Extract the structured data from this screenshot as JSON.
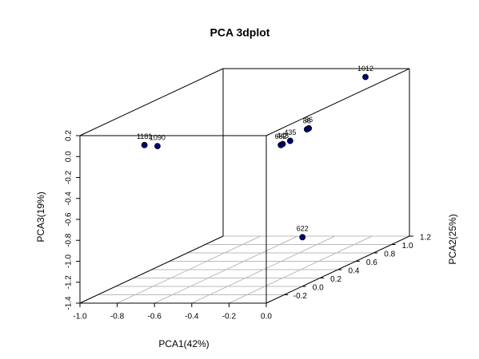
{
  "chart_data": {
    "type": "scatter3d",
    "title": "PCA 3dplot",
    "xlabel": "PCA1(42%)",
    "ylabel": "PCA2(25%)",
    "zlabel": "PCA3(19%)",
    "xlim": [
      -1.0,
      0.0
    ],
    "xticks": [
      {
        "value": -1.0,
        "label": "-1.0"
      },
      {
        "value": -0.8,
        "label": "-0.8"
      },
      {
        "value": -0.6,
        "label": "-0.6"
      },
      {
        "value": -0.4,
        "label": "-0.4"
      },
      {
        "value": -0.2,
        "label": "-0.2"
      },
      {
        "value": 0.0,
        "label": "0.0"
      }
    ],
    "ylim": [
      -0.4,
      1.2
    ],
    "yticks": [
      {
        "value": -0.2,
        "label": "-0.2"
      },
      {
        "value": 0.0,
        "label": "0.0"
      },
      0.2,
      0.4,
      0.6,
      0.8,
      {
        "value": 1.0,
        "label": "1.0"
      },
      1.2
    ],
    "zlim": [
      -1.4,
      0.2
    ],
    "zticks": [
      {
        "value": -1.4,
        "label": "-1.4"
      },
      {
        "value": -1.2,
        "label": "-1.2"
      },
      {
        "value": -1.0,
        "label": "-1.0"
      },
      {
        "value": -0.8,
        "label": "-0.8"
      },
      {
        "value": -0.6,
        "label": "-0.6"
      },
      {
        "value": -0.4,
        "label": "-0.4"
      },
      {
        "value": -0.2,
        "label": "-0.2"
      },
      {
        "value": 0.0,
        "label": "0.0"
      },
      0.2
    ],
    "grid": true,
    "color": "#00007a",
    "points": [
      {
        "label": "1181",
        "x": -0.75,
        "y": -0.2,
        "z": 0.03
      },
      {
        "label": "1090",
        "x": -0.68,
        "y": -0.2,
        "z": 0.02
      },
      {
        "label": "1012",
        "x": -0.14,
        "y": 1.0,
        "z": 0.2
      },
      {
        "label": "682",
        "x": -0.21,
        "y": 0.2,
        "z": -0.13
      },
      {
        "label": "448",
        "x": -0.2,
        "y": 0.2,
        "z": -0.12
      },
      {
        "label": "435",
        "x": -0.16,
        "y": 0.2,
        "z": -0.09
      },
      {
        "label": "86",
        "x": -0.07,
        "y": 0.2,
        "z": 0.02
      },
      {
        "label": "36",
        "x": -0.06,
        "y": 0.2,
        "z": 0.03
      },
      {
        "label": "622",
        "x": -0.19,
        "y": 0.4,
        "z": -1.09
      }
    ]
  }
}
